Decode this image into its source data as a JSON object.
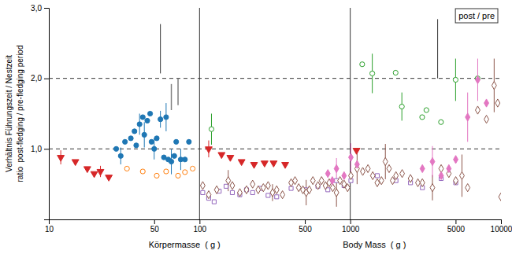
{
  "chart_data": {
    "type": "scatter",
    "xlabel": [
      "Körpermasse  ( g )",
      "Body Mass  ( g )"
    ],
    "ylabel": [
      "Verhältnis Führungszeit / Nestzeit",
      "ratio  post-fledging / pre-fledging period"
    ],
    "annotations": [
      "post / pre"
    ],
    "log": "x",
    "grid": false,
    "xlim": [
      10,
      10000
    ],
    "ylim": [
      0.0,
      3.0
    ],
    "xticks": [
      10,
      50,
      100,
      500,
      1000,
      5000,
      10000
    ],
    "yticks": [
      {
        "value": 1.0,
        "label": "1,0"
      },
      {
        "value": 2.0,
        "label": "2,0"
      },
      {
        "value": 3.0,
        "label": "3,0"
      }
    ],
    "reference_lines": [
      {
        "axis": "y",
        "value": 1.0,
        "line_style": "dashed"
      },
      {
        "axis": "y",
        "value": 2.0,
        "line_style": "dashed"
      },
      {
        "axis": "x",
        "value": 100,
        "line_style": "solid"
      },
      {
        "axis": "x",
        "value": 1000,
        "line_style": "solid"
      }
    ],
    "series": [
      {
        "type": "scatter",
        "marker": "circle",
        "x": [
          28,
          30,
          32,
          35,
          37,
          38,
          40,
          42,
          43,
          45,
          47,
          48,
          50,
          52,
          55,
          58,
          60,
          62,
          65,
          68,
          70,
          75,
          80,
          85
        ],
        "values": [
          1.0,
          0.9,
          1.1,
          1.15,
          1.25,
          1.05,
          1.35,
          1.45,
          1.2,
          1.4,
          1.5,
          1.1,
          1.0,
          1.15,
          1.42,
          0.88,
          1.45,
          0.85,
          0.82,
          0.9,
          1.1,
          0.85,
          0.85,
          1.1
        ],
        "errors": [
          null,
          0.12,
          null,
          null,
          null,
          null,
          0.15,
          null,
          0.18,
          null,
          null,
          null,
          0.15,
          null,
          0.12,
          null,
          0.2,
          null,
          0.18,
          null,
          null,
          0.15,
          null,
          null
        ]
      },
      {
        "type": "scatter",
        "marker": "circle-open",
        "x": [
          33,
          42,
          52,
          60,
          72,
          80,
          90
        ],
        "values": [
          0.72,
          0.68,
          0.62,
          0.68,
          0.62,
          0.67,
          0.72
        ]
      },
      {
        "type": "scatter",
        "marker": "circle-open",
        "x": [
          120,
          1200,
          1400,
          2000,
          2200,
          3000,
          3200,
          4000,
          5000,
          7000
        ],
        "values": [
          1.28,
          2.2,
          2.07,
          2.08,
          1.6,
          1.45,
          1.55,
          1.38,
          1.98,
          2.0
        ],
        "errors": [
          0.22,
          null,
          0.28,
          null,
          0.2,
          null,
          null,
          null,
          0.3,
          null
        ]
      },
      {
        "type": "scatter",
        "marker": "triangle-down",
        "x": [
          12,
          15,
          18,
          20,
          22,
          25,
          115,
          140,
          160,
          190,
          230,
          270,
          310,
          370,
          1100
        ],
        "values": [
          0.88,
          0.82,
          0.72,
          0.65,
          0.68,
          0.6,
          1.0,
          0.92,
          0.88,
          0.82,
          0.78,
          0.8,
          0.8,
          0.78,
          0.98
        ],
        "errors": [
          0.1,
          null,
          null,
          null,
          0.08,
          null,
          0.12,
          null,
          null,
          null,
          null,
          null,
          null,
          null,
          null
        ]
      },
      {
        "type": "scatter",
        "marker": "square-open",
        "x": [
          105,
          115,
          125,
          135,
          150,
          165,
          185,
          205,
          225,
          255,
          285,
          325,
          405,
          505,
          610,
          710,
          810,
          910,
          1010,
          1510,
          2010,
          2510,
          3010,
          4010,
          5010
        ],
        "values": [
          0.38,
          0.3,
          0.25,
          0.4,
          0.47,
          0.38,
          0.35,
          0.42,
          0.38,
          0.44,
          0.34,
          0.32,
          0.44,
          0.42,
          0.47,
          0.42,
          0.55,
          0.48,
          0.55,
          0.62,
          0.55,
          0.52,
          0.45,
          0.58,
          0.52
        ]
      },
      {
        "type": "scatter",
        "marker": "diamond-open",
        "x": [
          105,
          115,
          130,
          155,
          165,
          185,
          205,
          225,
          245,
          265,
          285,
          305,
          325,
          355,
          405,
          430,
          455,
          485,
          510,
          535,
          565,
          610,
          645,
          685,
          725,
          765,
          810,
          855,
          910,
          960,
          1010,
          1110,
          1210,
          1310,
          1410,
          1510,
          1610,
          1710,
          1810,
          1910,
          2010,
          2210,
          2510,
          2810,
          3010,
          3510,
          4010,
          4510,
          5010,
          5510,
          6010,
          7010,
          8010,
          9010,
          9510,
          10000
        ],
        "values": [
          0.48,
          0.35,
          0.42,
          0.55,
          0.48,
          0.38,
          0.42,
          0.5,
          0.42,
          0.45,
          0.48,
          0.38,
          0.42,
          0.35,
          0.52,
          0.55,
          0.45,
          0.42,
          0.38,
          0.42,
          0.55,
          0.48,
          0.55,
          0.48,
          0.52,
          0.45,
          0.38,
          0.55,
          0.5,
          0.45,
          0.62,
          0.72,
          0.68,
          0.72,
          0.62,
          0.52,
          0.55,
          0.82,
          0.72,
          0.55,
          0.62,
          0.65,
          0.58,
          0.52,
          0.52,
          0.45,
          0.72,
          0.65,
          0.55,
          0.62,
          0.45,
          1.55,
          1.42,
          1.9,
          1.65,
          0.32
        ],
        "errors": [
          null,
          null,
          null,
          0.15,
          null,
          null,
          null,
          null,
          null,
          null,
          null,
          0.12,
          null,
          null,
          null,
          null,
          null,
          null,
          0.18,
          null,
          null,
          null,
          null,
          null,
          null,
          null,
          0.2,
          null,
          null,
          null,
          null,
          0.22,
          null,
          null,
          null,
          null,
          null,
          0.25,
          null,
          null,
          null,
          null,
          null,
          null,
          null,
          0.18,
          null,
          null,
          null,
          0.3,
          null,
          null,
          null,
          0.38,
          null,
          null
        ]
      },
      {
        "type": "scatter",
        "marker": "diamond",
        "x": [
          710,
          760,
          810,
          910,
          1010,
          1110,
          3010,
          3510,
          4010,
          4510,
          5010,
          6010,
          7010,
          8010
        ],
        "values": [
          0.65,
          0.55,
          0.72,
          0.62,
          0.88,
          0.78,
          0.72,
          0.82,
          0.62,
          0.72,
          0.85,
          1.45,
          1.98,
          1.65
        ],
        "errors": [
          null,
          null,
          0.15,
          null,
          0.2,
          null,
          null,
          0.22,
          null,
          null,
          null,
          0.35,
          0.3,
          null
        ]
      },
      {
        "type": "errorbar",
        "x": [
          55,
          3800
        ],
        "values": [
          2.42,
          2.42
        ],
        "errors": [
          0.35,
          0.42
        ]
      },
      {
        "type": "range",
        "color": "gray",
        "x": [
          65,
          72
        ],
        "low": [
          1.55,
          1.62
        ],
        "high": [
          1.92,
          2.0
        ]
      }
    ]
  }
}
